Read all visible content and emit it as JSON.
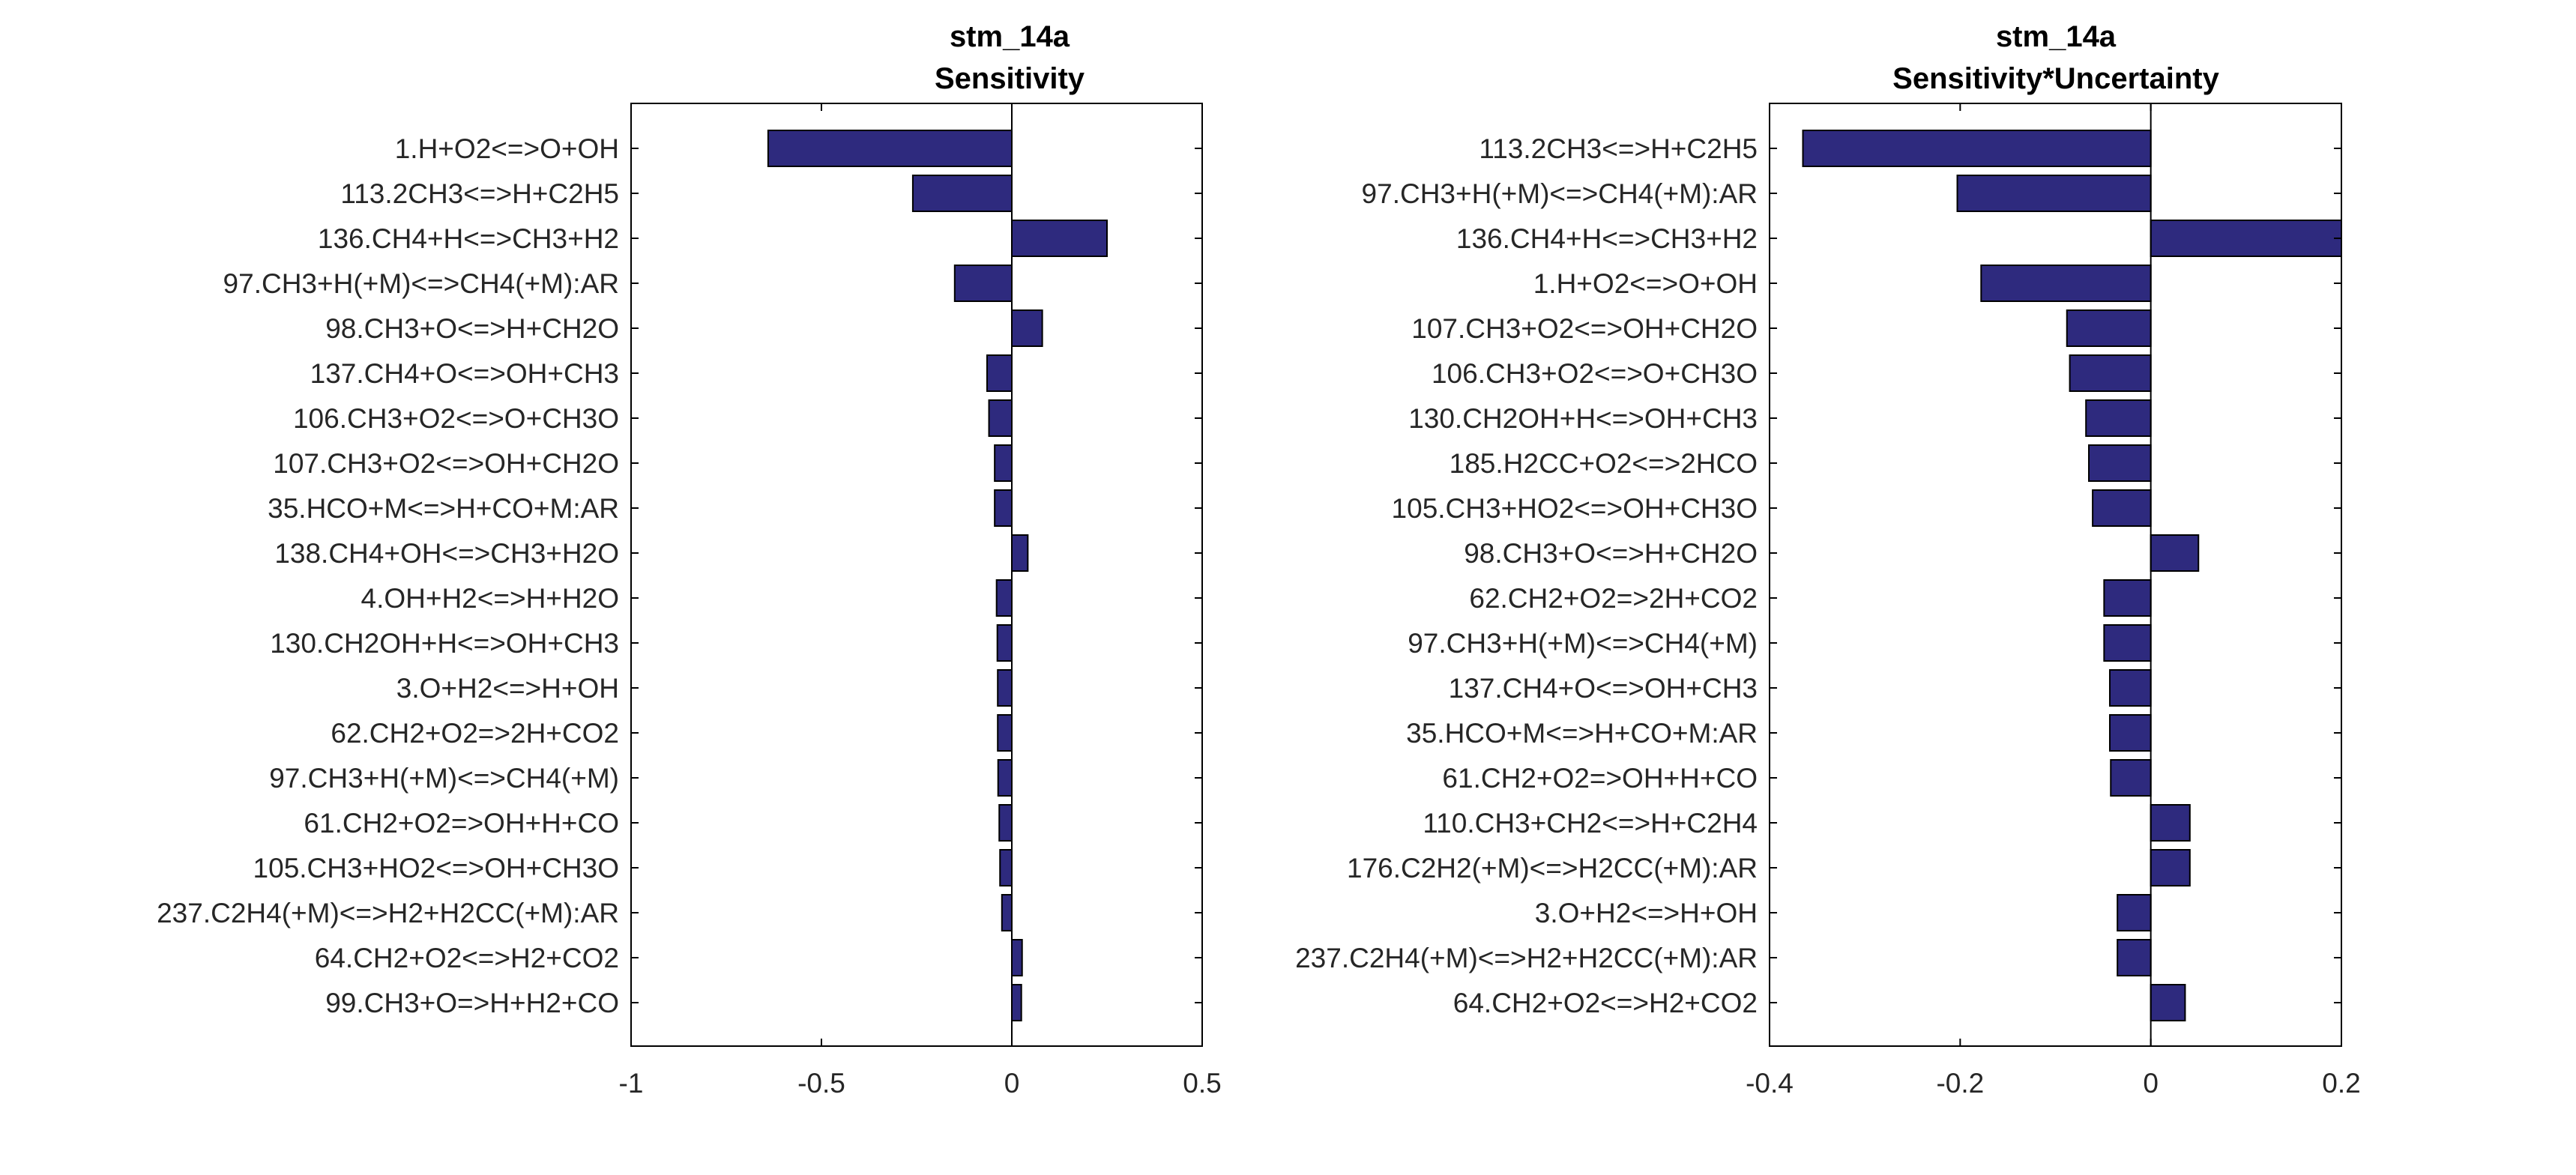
{
  "colors": {
    "bar": "#2e2a7e",
    "bar_stroke": "#000000",
    "axis": "#000000",
    "background": "#ffffff"
  },
  "chart_data": [
    {
      "type": "bar",
      "orientation": "horizontal",
      "title": "stm_14a",
      "subtitle": "Sensitivity",
      "xlabel": "",
      "ylabel": "",
      "xlim": [
        -1,
        0.5
      ],
      "xticks": [
        -1,
        -0.5,
        0,
        0.5
      ],
      "xtick_labels": [
        "-1",
        "-0.5",
        "0",
        "0.5"
      ],
      "grid": false,
      "categories": [
        "1.H+O2<=>O+OH",
        "113.2CH3<=>H+C2H5",
        "136.CH4+H<=>CH3+H2",
        "97.CH3+H(+M)<=>CH4(+M):AR",
        "98.CH3+O<=>H+CH2O",
        "137.CH4+O<=>OH+CH3",
        "106.CH3+O2<=>O+CH3O",
        "107.CH3+O2<=>OH+CH2O",
        "35.HCO+M<=>H+CO+M:AR",
        "138.CH4+OH<=>CH3+H2O",
        "4.OH+H2<=>H+H2O",
        "130.CH2OH+H<=>OH+CH3",
        "3.O+H2<=>H+OH",
        "62.CH2+O2=>2H+CO2",
        "97.CH3+H(+M)<=>CH4(+M)",
        "61.CH2+O2=>OH+H+CO",
        "105.CH3+HO2<=>OH+CH3O",
        "237.C2H4(+M)<=>H2+H2CC(+M):AR",
        "64.CH2+O2<=>H2+CO2",
        "99.CH3+O=>H+H2+CO"
      ],
      "values": [
        -0.64,
        -0.26,
        0.25,
        -0.15,
        0.08,
        -0.065,
        -0.06,
        -0.045,
        -0.045,
        0.042,
        -0.04,
        -0.038,
        -0.037,
        -0.037,
        -0.036,
        -0.033,
        -0.031,
        -0.026,
        0.027,
        0.025
      ]
    },
    {
      "type": "bar",
      "orientation": "horizontal",
      "title": "stm_14a",
      "subtitle": "Sensitivity*Uncertainty",
      "xlabel": "",
      "ylabel": "",
      "xlim": [
        -0.4,
        0.2
      ],
      "xticks": [
        -0.4,
        -0.2,
        0,
        0.2
      ],
      "xtick_labels": [
        "-0.4",
        "-0.2",
        "0",
        "0.2"
      ],
      "grid": false,
      "categories": [
        "113.2CH3<=>H+C2H5",
        "97.CH3+H(+M)<=>CH4(+M):AR",
        "136.CH4+H<=>CH3+H2",
        "1.H+O2<=>O+OH",
        "107.CH3+O2<=>OH+CH2O",
        "106.CH3+O2<=>O+CH3O",
        "130.CH2OH+H<=>OH+CH3",
        "185.H2CC+O2<=>2HCO",
        "105.CH3+HO2<=>OH+CH3O",
        "98.CH3+O<=>H+CH2O",
        "62.CH2+O2=>2H+CO2",
        "97.CH3+H(+M)<=>CH4(+M)",
        "137.CH4+O<=>OH+CH3",
        "35.HCO+M<=>H+CO+M:AR",
        "61.CH2+O2=>OH+H+CO",
        "110.CH3+CH2<=>H+C2H4",
        "176.C2H2(+M)<=>H2CC(+M):AR",
        "3.O+H2<=>H+OH",
        "237.C2H4(+M)<=>H2+H2CC(+M):AR",
        "64.CH2+O2<=>H2+CO2"
      ],
      "values": [
        -0.365,
        -0.203,
        0.2,
        -0.178,
        -0.088,
        -0.085,
        -0.068,
        -0.065,
        -0.061,
        0.05,
        -0.049,
        -0.049,
        -0.043,
        -0.043,
        -0.042,
        0.041,
        0.041,
        -0.035,
        -0.035,
        0.036
      ]
    }
  ]
}
